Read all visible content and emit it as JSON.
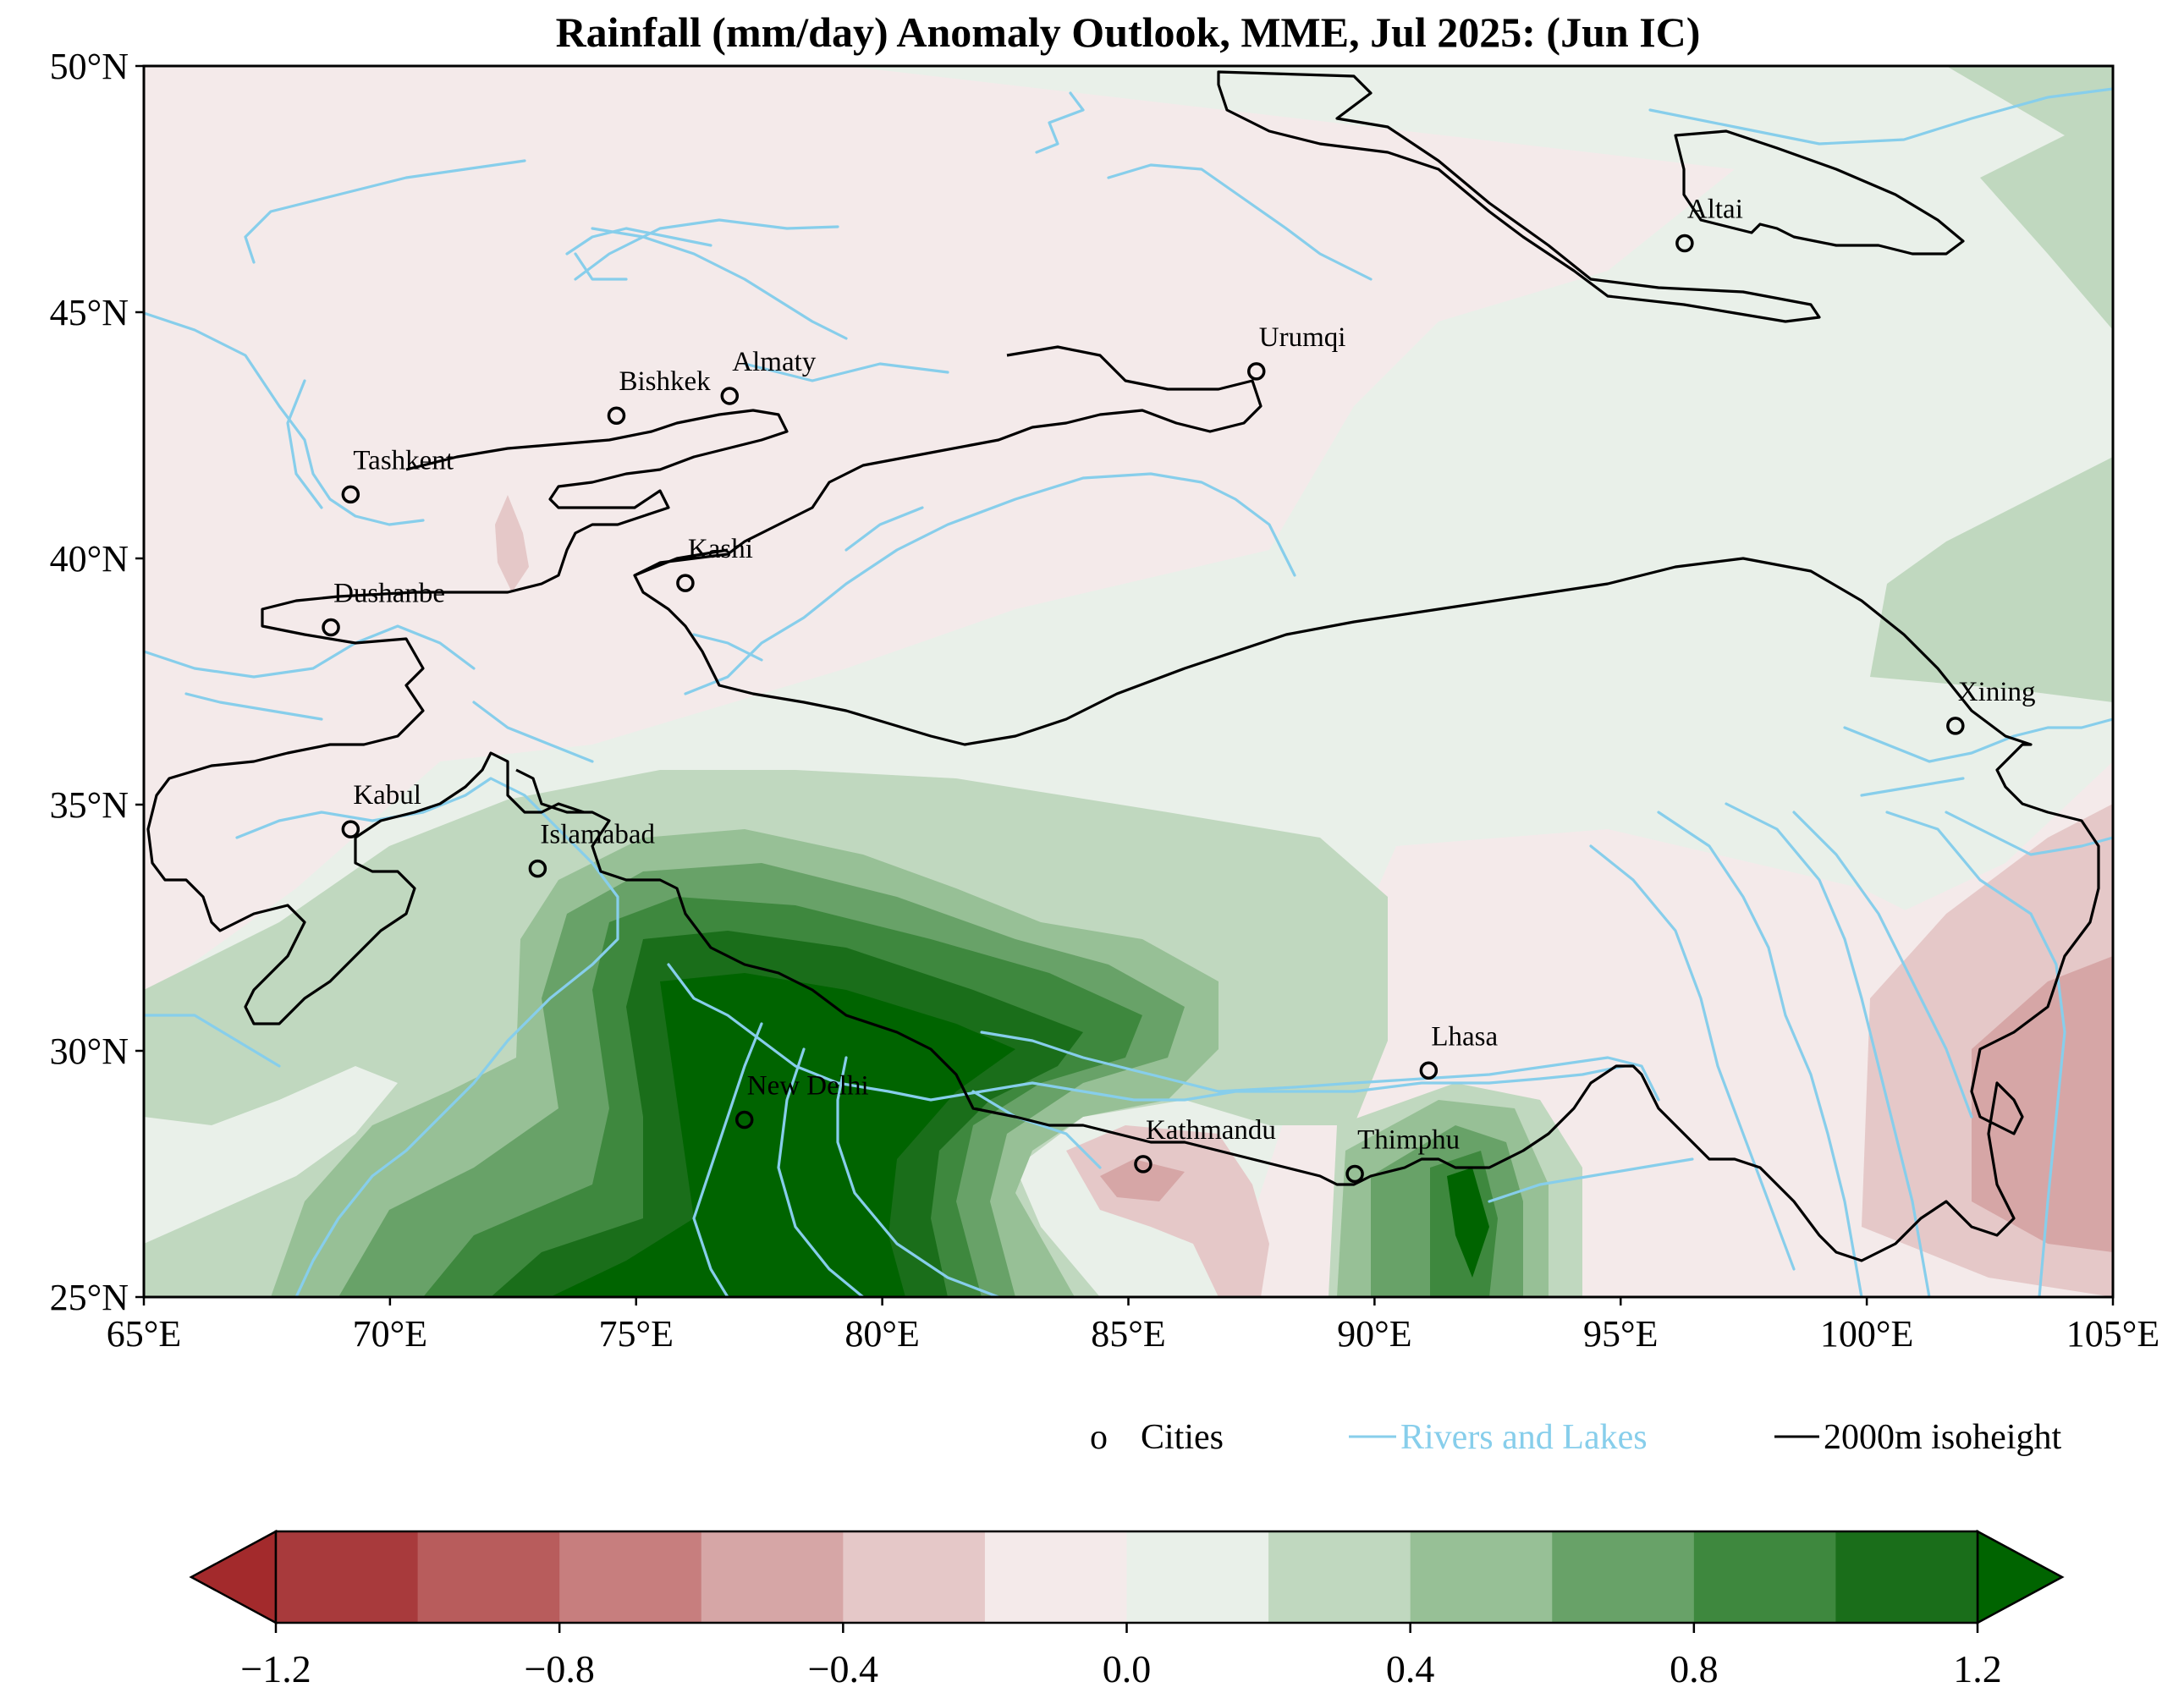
{
  "title": "Rainfall (mm/day) Anomaly Outlook, MME, Jul  2025:  (Jun IC)",
  "map": {
    "lon_range": [
      65,
      105
    ],
    "lat_range": [
      25,
      50
    ],
    "lon_ticks": [
      "65°E",
      "70°E",
      "75°E",
      "80°E",
      "85°E",
      "90°E",
      "95°E",
      "100°E",
      "105°E"
    ],
    "lat_ticks": [
      "50°N",
      "45°N",
      "40°N",
      "35°N",
      "30°N",
      "25°N"
    ],
    "cities": [
      {
        "name": "Altai",
        "lon": 96.3,
        "lat": 46.4
      },
      {
        "name": "Urumqi",
        "lon": 87.6,
        "lat": 43.8
      },
      {
        "name": "Almaty",
        "lon": 76.9,
        "lat": 43.3
      },
      {
        "name": "Bishkek",
        "lon": 74.6,
        "lat": 42.9
      },
      {
        "name": "Tashkent",
        "lon": 69.2,
        "lat": 41.3
      },
      {
        "name": "Kashi",
        "lon": 76.0,
        "lat": 39.5
      },
      {
        "name": "Dushanbe",
        "lon": 68.8,
        "lat": 38.6
      },
      {
        "name": "Xining",
        "lon": 101.8,
        "lat": 36.6
      },
      {
        "name": "Kabul",
        "lon": 69.2,
        "lat": 34.5
      },
      {
        "name": "Islamabad",
        "lon": 73.0,
        "lat": 33.7
      },
      {
        "name": "Lhasa",
        "lon": 91.1,
        "lat": 29.6
      },
      {
        "name": "New Delhi",
        "lon": 77.2,
        "lat": 28.6
      },
      {
        "name": "Kathmandu",
        "lon": 85.3,
        "lat": 27.7
      },
      {
        "name": "Thimphu",
        "lon": 89.6,
        "lat": 27.5
      }
    ]
  },
  "legend": {
    "cities_marker": "o",
    "cities_label": "Cities",
    "rivers_label": "Rivers and Lakes",
    "isoheight_label": "2000m isoheight"
  },
  "colorbar": {
    "levels": [
      -1.2,
      -1.0,
      -0.8,
      -0.6,
      -0.4,
      -0.2,
      0.0,
      0.2,
      0.4,
      0.6,
      0.8,
      1.0,
      1.2
    ],
    "colors": [
      "#a83a3c",
      "#b85c5c",
      "#c77e7e",
      "#d6a6a6",
      "#e5c8c8",
      "#f4eaea",
      "#e9f0e9",
      "#c0d8bf",
      "#97c096",
      "#68a268",
      "#3e883e",
      "#1a6e1a"
    ],
    "under_color": "#a32a2c",
    "over_color": "#006400",
    "tick_labels": [
      "−1.2",
      "−0.8",
      "−0.4",
      "0.0",
      "0.4",
      "0.8",
      "1.2"
    ]
  },
  "colors": {
    "river": "#87ceeb",
    "isoheight": "#000000",
    "pos_max": "#006400",
    "neg_max": "#a83a3c"
  }
}
